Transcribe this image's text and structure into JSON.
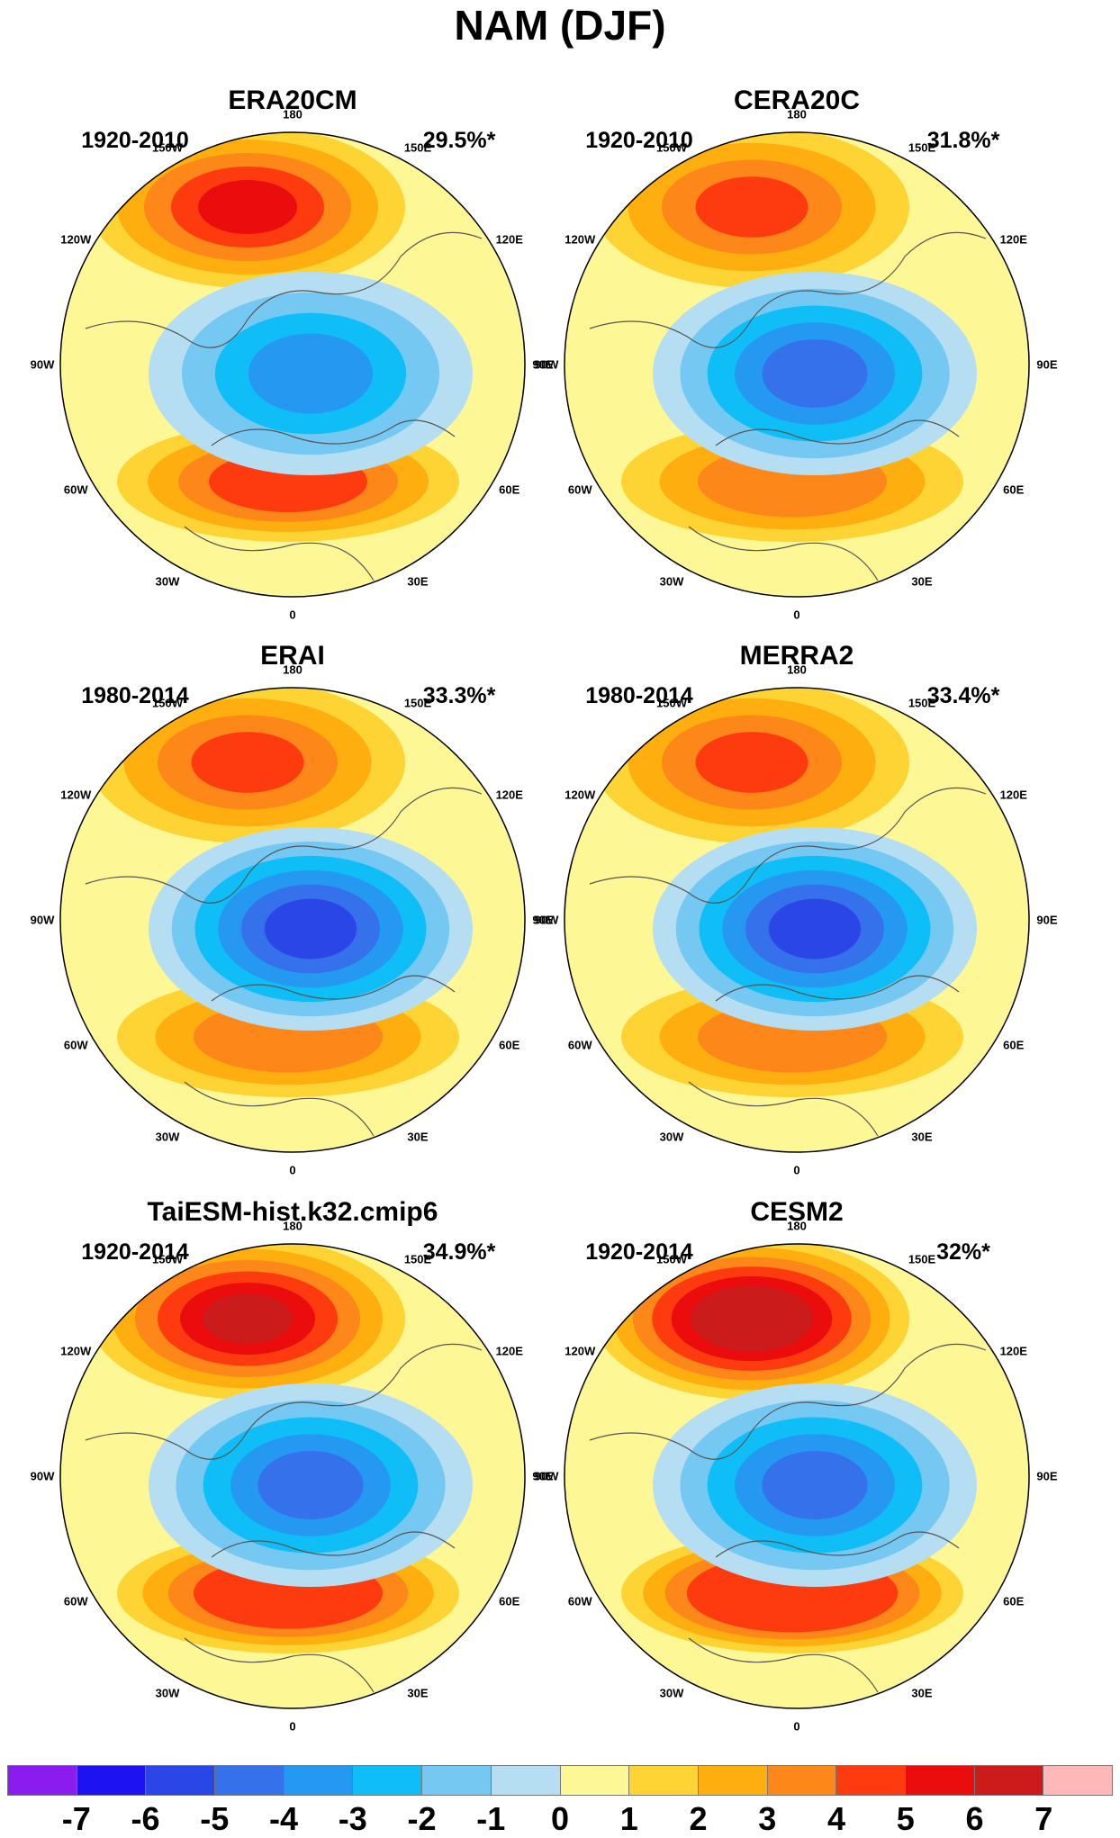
{
  "title": "NAM (DJF)",
  "longitude_labels": [
    "180",
    "150E",
    "120E",
    "90E",
    "60E",
    "30E",
    "0",
    "30W",
    "60W",
    "90W",
    "120W",
    "150W"
  ],
  "panels": [
    {
      "name": "ERA20CM",
      "period": "1920-2010",
      "percent": "29.5%*",
      "low_min": -4,
      "high_max": 5
    },
    {
      "name": "CERA20C",
      "period": "1920-2010",
      "percent": "31.8%*",
      "low_min": -5,
      "high_max": 4
    },
    {
      "name": "ERAI",
      "period": "1980-2014",
      "percent": "33.3%*",
      "low_min": -6,
      "high_max": 4
    },
    {
      "name": "MERRA2",
      "period": "1980-2014",
      "percent": "33.4%*",
      "low_min": -6,
      "high_max": 4
    },
    {
      "name": "TaiESM-hist.k32.cmip6",
      "period": "1920-2014",
      "percent": "34.9%*",
      "low_min": -5,
      "high_max": 6
    },
    {
      "name": "CESM2",
      "period": "1920-2014",
      "percent": "32%*",
      "low_min": -5,
      "high_max": 7
    }
  ],
  "colorbar": {
    "ticks": [
      "-7",
      "-6",
      "-5",
      "-4",
      "-3",
      "-2",
      "-1",
      "0",
      "1",
      "2",
      "3",
      "4",
      "5",
      "6",
      "7"
    ],
    "colors": [
      "#8b1cf0",
      "#1c12f2",
      "#2b46e6",
      "#3571ea",
      "#2598f2",
      "#0fbef7",
      "#75c8f2",
      "#b6def2",
      "#fef796",
      "#fed435",
      "#feae0e",
      "#fe8719",
      "#fe3a0f",
      "#eb0d0d",
      "#cb1b1b",
      "#feb8b8"
    ]
  }
}
